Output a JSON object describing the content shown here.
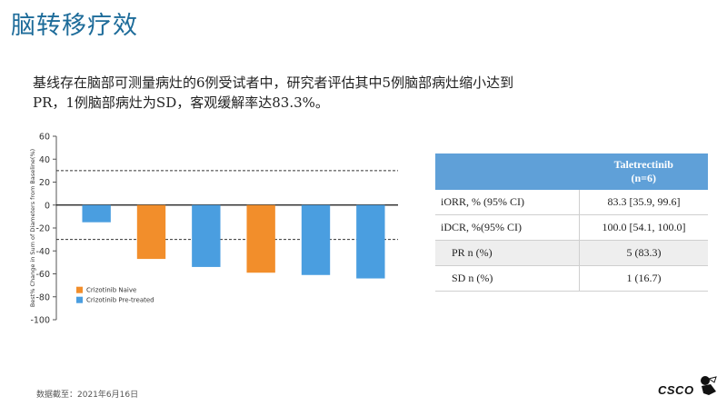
{
  "slide": {
    "title": "脑转移疗效",
    "summary_lines": [
      "基线存在脑部可测量病灶的6例受试者中，研究者评估其中5例脑部病灶缩小达到",
      "PR，1例脑部病灶为SD，客观缓解率达83.3%。"
    ],
    "footer": "数据截至：2021年6月16日",
    "logo_text": "CSCO"
  },
  "chart_data": {
    "type": "bar",
    "ylabel": "Best% Change in Sum of Diameters from Baseline(%)",
    "ylim": [
      -100,
      60
    ],
    "yticks": [
      60,
      40,
      20,
      0,
      -20,
      -40,
      -60,
      -80,
      -100
    ],
    "reference_lines": [
      30,
      -30
    ],
    "values": [
      -15,
      -47,
      -54,
      -59,
      -61,
      -64
    ],
    "groups": [
      "Crizotinib Pre-treated",
      "Crizotinib Naive",
      "Crizotinib Pre-treated",
      "Crizotinib Naive",
      "Crizotinib Pre-treated",
      "Crizotinib Pre-treated"
    ],
    "legend": [
      {
        "name": "Crizotinib Naive",
        "color": "#f28e2b"
      },
      {
        "name": "Crizotinib Pre-treated",
        "color": "#4a9ee0"
      }
    ],
    "legend_position": "lower-left",
    "grid": false
  },
  "table": {
    "header": [
      "",
      "Taletrectinib",
      "(n=6)"
    ],
    "rows": [
      {
        "label": "iORR, % (95% CI)",
        "value": "83.3 [35.9, 99.6]",
        "indent": false,
        "shade": false
      },
      {
        "label": "iDCR, %(95% CI)",
        "value": "100.0 [54.1, 100.0]",
        "indent": false,
        "shade": false
      },
      {
        "label": "PR n (%)",
        "value": "5  (83.3)",
        "indent": true,
        "shade": true
      },
      {
        "label": "SD n (%)",
        "value": "1 (16.7)",
        "indent": true,
        "shade": false
      }
    ]
  },
  "colors": {
    "title": "#1e6c9a",
    "table_header": "#5fa0d8",
    "naive": "#f28e2b",
    "pretreated": "#4a9ee0"
  }
}
